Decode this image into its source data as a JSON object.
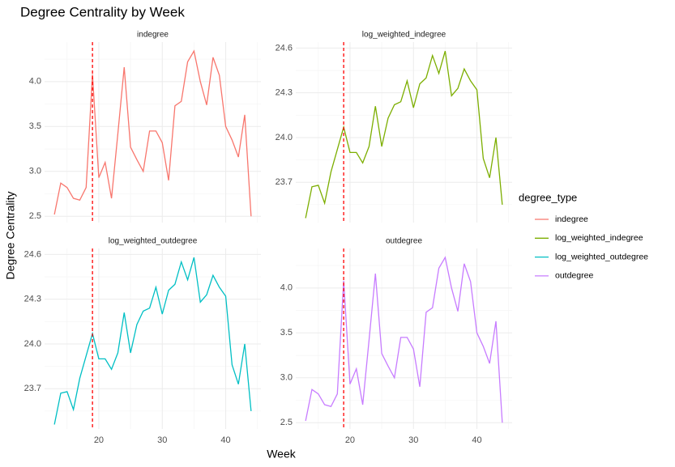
{
  "title": "Degree Centrality by Week",
  "x_label": "Week",
  "y_label": "Degree Centrality",
  "legend_title": "degree_type",
  "chart_data": [
    {
      "type": "line",
      "facet": "indegree",
      "x": [
        13,
        14,
        15,
        16,
        17,
        18,
        19,
        20,
        21,
        22,
        23,
        24,
        25,
        26,
        27,
        28,
        29,
        30,
        31,
        32,
        33,
        34,
        35,
        36,
        37,
        38,
        39,
        40,
        41,
        42,
        43,
        44
      ],
      "series": [
        {
          "name": "indegree",
          "color": "#F8766D",
          "values": [
            2.52,
            2.87,
            2.82,
            2.7,
            2.68,
            2.82,
            4.08,
            2.93,
            3.1,
            2.7,
            3.42,
            4.16,
            3.27,
            3.13,
            3.0,
            3.45,
            3.45,
            3.32,
            2.9,
            3.73,
            3.78,
            4.22,
            4.34,
            4.0,
            3.74,
            4.27,
            4.07,
            3.5,
            3.35,
            3.16,
            3.63,
            2.5
          ]
        }
      ],
      "xlim": [
        11.45,
        45.55
      ],
      "xticks": [
        20,
        30,
        40
      ],
      "x_minor_ticks": [
        15,
        25,
        35,
        45
      ],
      "ylim": [
        2.43,
        4.44
      ],
      "yticks": [
        2.5,
        {
          "value": 3,
          "label": "3.0"
        },
        3.5,
        {
          "value": 4,
          "label": "4.0"
        }
      ],
      "y_minor_ticks": [
        2.75,
        3.25,
        3.75,
        4.25
      ],
      "vline": 19,
      "vline_color": "#FF0000",
      "grid": true
    },
    {
      "type": "line",
      "facet": "log_weighted_indegree",
      "x": [
        13,
        14,
        15,
        16,
        17,
        18,
        19,
        20,
        21,
        22,
        23,
        24,
        25,
        26,
        27,
        28,
        29,
        30,
        31,
        32,
        33,
        34,
        35,
        36,
        37,
        38,
        39,
        40,
        41,
        42,
        43,
        44
      ],
      "series": [
        {
          "name": "log_weighted_indegree",
          "color": "#7CAE00",
          "values": [
            23.46,
            23.67,
            23.68,
            23.56,
            23.77,
            23.92,
            24.07,
            23.9,
            23.9,
            23.83,
            23.94,
            24.21,
            23.94,
            24.13,
            24.22,
            24.24,
            24.38,
            24.2,
            24.36,
            24.4,
            24.55,
            24.43,
            24.58,
            24.28,
            24.33,
            24.46,
            24.38,
            24.32,
            23.86,
            23.73,
            24.0,
            23.55
          ]
        }
      ],
      "xlim": [
        11.45,
        45.55
      ],
      "xticks": [
        20,
        30,
        40
      ],
      "x_minor_ticks": [
        15,
        25,
        35,
        45
      ],
      "ylim": [
        23.43,
        24.64
      ],
      "yticks": [
        23.7,
        {
          "value": 24,
          "label": "24.0"
        },
        24.3,
        24.6
      ],
      "y_minor_ticks": [
        23.55,
        23.85,
        24.15,
        24.45
      ],
      "vline": 19,
      "vline_color": "#FF0000",
      "grid": true
    },
    {
      "type": "line",
      "facet": "log_weighted_outdegree",
      "x": [
        13,
        14,
        15,
        16,
        17,
        18,
        19,
        20,
        21,
        22,
        23,
        24,
        25,
        26,
        27,
        28,
        29,
        30,
        31,
        32,
        33,
        34,
        35,
        36,
        37,
        38,
        39,
        40,
        41,
        42,
        43,
        44
      ],
      "series": [
        {
          "name": "log_weighted_outdegree",
          "color": "#00BFC4",
          "values": [
            23.46,
            23.67,
            23.68,
            23.56,
            23.77,
            23.92,
            24.07,
            23.9,
            23.9,
            23.83,
            23.94,
            24.21,
            23.94,
            24.13,
            24.22,
            24.24,
            24.38,
            24.2,
            24.36,
            24.4,
            24.55,
            24.43,
            24.58,
            24.28,
            24.33,
            24.46,
            24.38,
            24.32,
            23.86,
            23.73,
            24.0,
            23.55
          ]
        }
      ],
      "xlim": [
        11.45,
        45.55
      ],
      "xticks": [
        20,
        30,
        40
      ],
      "x_minor_ticks": [
        15,
        25,
        35,
        45
      ],
      "ylim": [
        23.43,
        24.64
      ],
      "yticks": [
        23.7,
        {
          "value": 24,
          "label": "24.0"
        },
        24.3,
        24.6
      ],
      "y_minor_ticks": [
        23.55,
        23.85,
        24.15,
        24.45
      ],
      "vline": 19,
      "vline_color": "#FF0000",
      "grid": true
    },
    {
      "type": "line",
      "facet": "outdegree",
      "x": [
        13,
        14,
        15,
        16,
        17,
        18,
        19,
        20,
        21,
        22,
        23,
        24,
        25,
        26,
        27,
        28,
        29,
        30,
        31,
        32,
        33,
        34,
        35,
        36,
        37,
        38,
        39,
        40,
        41,
        42,
        43,
        44
      ],
      "series": [
        {
          "name": "outdegree",
          "color": "#C77CFF",
          "values": [
            2.52,
            2.87,
            2.82,
            2.7,
            2.68,
            2.82,
            4.08,
            2.93,
            3.1,
            2.7,
            3.42,
            4.16,
            3.27,
            3.13,
            3.0,
            3.45,
            3.45,
            3.32,
            2.9,
            3.73,
            3.78,
            4.22,
            4.34,
            4.0,
            3.74,
            4.27,
            4.07,
            3.5,
            3.35,
            3.16,
            3.63,
            2.5
          ]
        }
      ],
      "xlim": [
        11.45,
        45.55
      ],
      "xticks": [
        20,
        30,
        40
      ],
      "x_minor_ticks": [
        15,
        25,
        35,
        45
      ],
      "ylim": [
        2.43,
        4.44
      ],
      "yticks": [
        2.5,
        {
          "value": 3,
          "label": "3.0"
        },
        3.5,
        {
          "value": 4,
          "label": "4.0"
        }
      ],
      "y_minor_ticks": [
        2.75,
        3.25,
        3.75,
        4.25
      ],
      "vline": 19,
      "vline_color": "#FF0000",
      "grid": true
    }
  ]
}
